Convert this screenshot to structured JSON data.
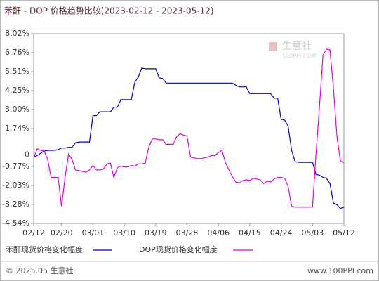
{
  "chart_data": {
    "type": "line",
    "title": "苯酐 - DOP 价格趋势比较(2023-02-12 - 2023-05-12)",
    "watermark": "生意社",
    "watermark_sub": "100PPI.COM",
    "footer_left": "© 2025.05 生意社",
    "footer_right": "www.100PPI.com",
    "categories": [
      "02/12",
      null,
      null,
      null,
      null,
      null,
      null,
      null,
      "02/20",
      null,
      null,
      null,
      null,
      null,
      null,
      null,
      null,
      "03/01",
      null,
      null,
      null,
      null,
      null,
      null,
      null,
      null,
      "03/10",
      null,
      null,
      null,
      null,
      null,
      null,
      null,
      null,
      "03/19",
      null,
      null,
      null,
      null,
      null,
      null,
      null,
      null,
      "03/28",
      null,
      null,
      null,
      null,
      null,
      null,
      null,
      null,
      "04/06",
      null,
      null,
      null,
      null,
      null,
      null,
      null,
      null,
      "04/15",
      null,
      null,
      null,
      null,
      null,
      null,
      null,
      null,
      "04/24",
      null,
      null,
      null,
      null,
      null,
      null,
      null,
      null,
      "05/03",
      null,
      null,
      null,
      null,
      null,
      null,
      null,
      null,
      "05/12"
    ],
    "series": [
      {
        "name": "苯酐现货价格变化幅度",
        "color": "#0000cc",
        "values": [
          -0.15,
          -0.05,
          0.1,
          0.25,
          0.3,
          0.3,
          0.3,
          0.35,
          0.45,
          0.45,
          0.5,
          0.5,
          0.8,
          0.85,
          0.85,
          0.85,
          0.85,
          2.6,
          2.6,
          2.85,
          2.85,
          2.85,
          2.85,
          3.15,
          3.15,
          3.65,
          3.65,
          3.65,
          3.65,
          4.8,
          5.15,
          5.75,
          5.7,
          5.7,
          5.7,
          5.7,
          5.1,
          5.05,
          4.75,
          4.75,
          4.75,
          4.75,
          4.75,
          4.75,
          4.75,
          4.75,
          4.75,
          4.75,
          4.75,
          4.75,
          4.75,
          4.75,
          4.75,
          4.75,
          4.75,
          4.75,
          4.75,
          4.75,
          4.6,
          4.5,
          4.5,
          4.5,
          4.05,
          4.05,
          4.05,
          4.05,
          4.05,
          4.05,
          4.05,
          3.75,
          3.75,
          2.35,
          2.3,
          1.9,
          0.3,
          -0.45,
          -0.5,
          -0.5,
          -0.5,
          -0.5,
          -0.5,
          -1.3,
          -1.35,
          -1.5,
          -1.55,
          -1.9,
          -3.2,
          -3.3,
          -3.55,
          -3.45
        ]
      },
      {
        "name": "DOP现货价格变化幅度",
        "color": "#dd00dd",
        "values": [
          -0.2,
          0.4,
          0.3,
          0.25,
          -0.3,
          -1.5,
          -1.5,
          -1.5,
          -3.4,
          -1.5,
          0.05,
          -0.3,
          -1.0,
          -1.05,
          -1.1,
          -1.15,
          -1.0,
          -0.7,
          -1.0,
          -1.0,
          -0.95,
          -0.6,
          -0.55,
          -1.5,
          -0.85,
          -0.75,
          -0.8,
          -0.8,
          -0.7,
          -0.75,
          -0.6,
          -0.6,
          -0.55,
          0.5,
          1.05,
          1.05,
          1.0,
          1.0,
          0.7,
          0.7,
          0.7,
          1.2,
          1.4,
          1.3,
          1.25,
          -0.15,
          -0.2,
          -0.25,
          -0.25,
          -0.2,
          -0.15,
          -0.05,
          -0.05,
          0.15,
          0.3,
          -0.5,
          -1.0,
          -1.45,
          -1.8,
          -1.85,
          -1.7,
          -1.65,
          -1.7,
          -1.55,
          -1.6,
          -1.65,
          -1.9,
          -1.75,
          -1.8,
          -1.6,
          -1.5,
          -1.5,
          -1.55,
          -2.1,
          -3.4,
          -3.45,
          -3.45,
          -3.45,
          -3.45,
          -3.45,
          -3.45,
          0.1,
          3.2,
          6.6,
          7.0,
          6.95,
          4.4,
          1.2,
          -0.4,
          -0.55
        ]
      }
    ],
    "ylim": [
      -4.54,
      8.02
    ],
    "yticks": [
      {
        "value": 8.02,
        "label": "8.02%"
      },
      {
        "value": 6.76,
        "label": "6.76%"
      },
      {
        "value": 5.51,
        "label": "5.51%"
      },
      {
        "value": 4.25,
        "label": "4.25%"
      },
      {
        "value": 3.0,
        "label": "3.00%"
      },
      {
        "value": 1.74,
        "label": "1.74%"
      },
      0,
      {
        "value": -0.77,
        "label": "-0.77%"
      },
      {
        "value": -2.03,
        "label": "-2.03%"
      },
      {
        "value": -3.28,
        "label": "-3.28%"
      },
      {
        "value": -4.54,
        "label": "-4.54%"
      }
    ],
    "grid": false
  }
}
